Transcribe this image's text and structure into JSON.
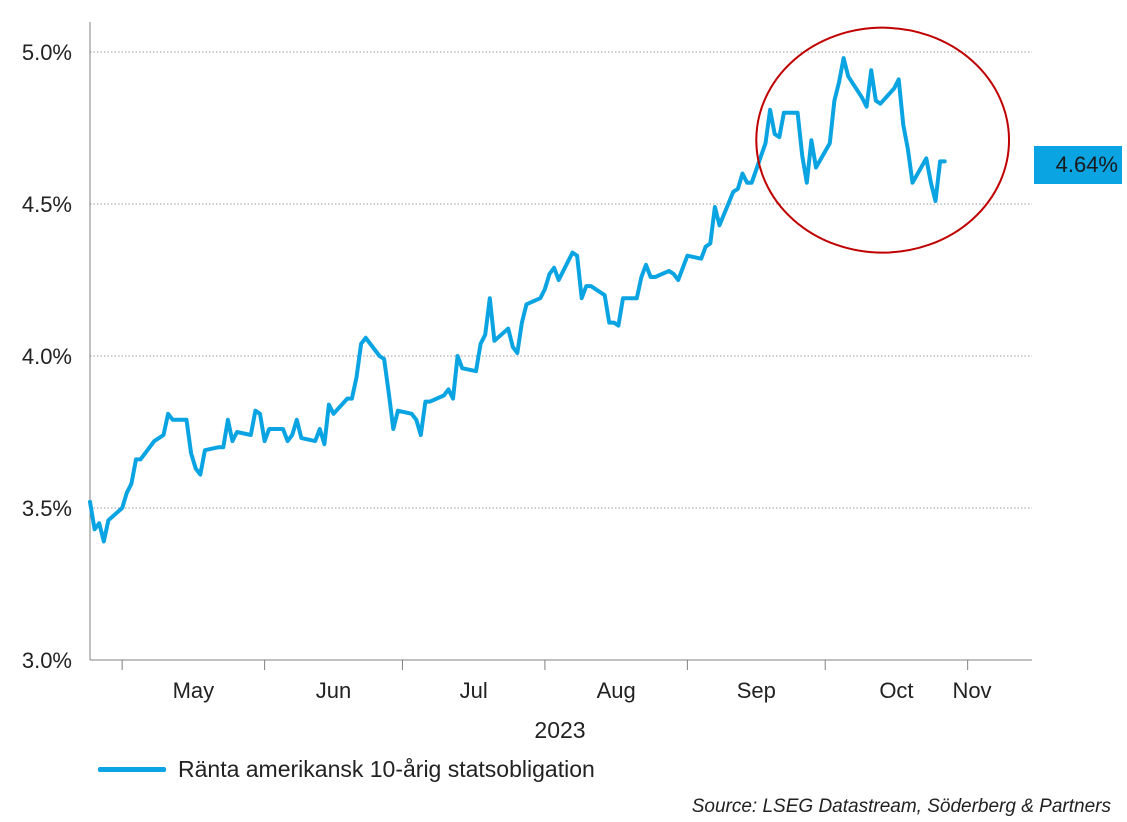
{
  "chart_data": {
    "type": "line",
    "title": "",
    "xlabel": "2023",
    "ylabel": "",
    "y_ticks": [
      "3.0%",
      "3.5%",
      "4.0%",
      "4.5%",
      "5.0%"
    ],
    "ylim": [
      3.0,
      5.0
    ],
    "x_ticks": [
      "May",
      "Jun",
      "Jul",
      "Aug",
      "Sep",
      "Oct",
      "Nov"
    ],
    "xlim": [
      "2023-04-24",
      "2023-11-15"
    ],
    "grid": true,
    "legend_position": "bottom-left",
    "series": [
      {
        "name": "Ränta amerikansk 10-årig statsobligation",
        "color": "#0ba4e2",
        "points": [
          [
            "2023-04-24",
            3.52
          ],
          [
            "2023-04-25",
            3.43
          ],
          [
            "2023-04-26",
            3.45
          ],
          [
            "2023-04-27",
            3.39
          ],
          [
            "2023-04-28",
            3.46
          ],
          [
            "2023-05-01",
            3.5
          ],
          [
            "2023-05-02",
            3.55
          ],
          [
            "2023-05-03",
            3.58
          ],
          [
            "2023-05-04",
            3.66
          ],
          [
            "2023-05-05",
            3.66
          ],
          [
            "2023-05-08",
            3.72
          ],
          [
            "2023-05-09",
            3.73
          ],
          [
            "2023-05-10",
            3.74
          ],
          [
            "2023-05-11",
            3.81
          ],
          [
            "2023-05-12",
            3.79
          ],
          [
            "2023-05-15",
            3.79
          ],
          [
            "2023-05-16",
            3.68
          ],
          [
            "2023-05-17",
            3.63
          ],
          [
            "2023-05-18",
            3.61
          ],
          [
            "2023-05-19",
            3.69
          ],
          [
            "2023-05-22",
            3.7
          ],
          [
            "2023-05-23",
            3.7
          ],
          [
            "2023-05-24",
            3.79
          ],
          [
            "2023-05-25",
            3.72
          ],
          [
            "2023-05-26",
            3.75
          ],
          [
            "2023-05-29",
            3.74
          ],
          [
            "2023-05-30",
            3.82
          ],
          [
            "2023-05-31",
            3.81
          ],
          [
            "2023-06-01",
            3.72
          ],
          [
            "2023-06-02",
            3.76
          ],
          [
            "2023-06-05",
            3.76
          ],
          [
            "2023-06-06",
            3.72
          ],
          [
            "2023-06-07",
            3.74
          ],
          [
            "2023-06-08",
            3.79
          ],
          [
            "2023-06-09",
            3.73
          ],
          [
            "2023-06-12",
            3.72
          ],
          [
            "2023-06-13",
            3.76
          ],
          [
            "2023-06-14",
            3.71
          ],
          [
            "2023-06-15",
            3.84
          ],
          [
            "2023-06-16",
            3.81
          ],
          [
            "2023-06-19",
            3.86
          ],
          [
            "2023-06-20",
            3.86
          ],
          [
            "2023-06-21",
            3.93
          ],
          [
            "2023-06-22",
            4.04
          ],
          [
            "2023-06-23",
            4.06
          ],
          [
            "2023-06-26",
            4.0
          ],
          [
            "2023-06-27",
            3.99
          ],
          [
            "2023-06-28",
            3.88
          ],
          [
            "2023-06-29",
            3.76
          ],
          [
            "2023-06-30",
            3.82
          ],
          [
            "2023-07-03",
            3.81
          ],
          [
            "2023-07-04",
            3.79
          ],
          [
            "2023-07-05",
            3.74
          ],
          [
            "2023-07-06",
            3.85
          ],
          [
            "2023-07-07",
            3.85
          ],
          [
            "2023-07-10",
            3.87
          ],
          [
            "2023-07-11",
            3.89
          ],
          [
            "2023-07-12",
            3.86
          ],
          [
            "2023-07-13",
            4.0
          ],
          [
            "2023-07-14",
            3.96
          ],
          [
            "2023-07-17",
            3.95
          ],
          [
            "2023-07-18",
            4.04
          ],
          [
            "2023-07-19",
            4.07
          ],
          [
            "2023-07-20",
            4.19
          ],
          [
            "2023-07-21",
            4.05
          ],
          [
            "2023-07-24",
            4.09
          ],
          [
            "2023-07-25",
            4.03
          ],
          [
            "2023-07-26",
            4.01
          ],
          [
            "2023-07-27",
            4.11
          ],
          [
            "2023-07-28",
            4.17
          ],
          [
            "2023-07-31",
            4.19
          ],
          [
            "2023-08-01",
            4.22
          ],
          [
            "2023-08-02",
            4.27
          ],
          [
            "2023-08-03",
            4.29
          ],
          [
            "2023-08-04",
            4.25
          ],
          [
            "2023-08-07",
            4.34
          ],
          [
            "2023-08-08",
            4.33
          ],
          [
            "2023-08-09",
            4.19
          ],
          [
            "2023-08-10",
            4.23
          ],
          [
            "2023-08-11",
            4.23
          ],
          [
            "2023-08-14",
            4.2
          ],
          [
            "2023-08-15",
            4.11
          ],
          [
            "2023-08-16",
            4.11
          ],
          [
            "2023-08-17",
            4.1
          ],
          [
            "2023-08-18",
            4.19
          ],
          [
            "2023-08-21",
            4.19
          ],
          [
            "2023-08-22",
            4.26
          ],
          [
            "2023-08-23",
            4.3
          ],
          [
            "2023-08-24",
            4.26
          ],
          [
            "2023-08-25",
            4.26
          ],
          [
            "2023-08-28",
            4.28
          ],
          [
            "2023-08-29",
            4.27
          ],
          [
            "2023-08-30",
            4.25
          ],
          [
            "2023-08-31",
            4.29
          ],
          [
            "2023-09-01",
            4.33
          ],
          [
            "2023-09-04",
            4.32
          ],
          [
            "2023-09-05",
            4.36
          ],
          [
            "2023-09-06",
            4.37
          ],
          [
            "2023-09-07",
            4.49
          ],
          [
            "2023-09-08",
            4.43
          ],
          [
            "2023-09-11",
            4.54
          ],
          [
            "2023-09-12",
            4.55
          ],
          [
            "2023-09-13",
            4.6
          ],
          [
            "2023-09-14",
            4.57
          ],
          [
            "2023-09-15",
            4.57
          ],
          [
            "2023-09-18",
            4.7
          ],
          [
            "2023-09-19",
            4.81
          ],
          [
            "2023-09-20",
            4.73
          ],
          [
            "2023-09-21",
            4.72
          ],
          [
            "2023-09-22",
            4.8
          ],
          [
            "2023-09-25",
            4.8
          ],
          [
            "2023-09-26",
            4.66
          ],
          [
            "2023-09-27",
            4.57
          ],
          [
            "2023-09-28",
            4.71
          ],
          [
            "2023-09-29",
            4.62
          ],
          [
            "2023-10-02",
            4.7
          ],
          [
            "2023-10-03",
            4.84
          ],
          [
            "2023-10-04",
            4.9
          ],
          [
            "2023-10-05",
            4.98
          ],
          [
            "2023-10-06",
            4.92
          ],
          [
            "2023-10-09",
            4.85
          ],
          [
            "2023-10-10",
            4.82
          ],
          [
            "2023-10-11",
            4.94
          ],
          [
            "2023-10-12",
            4.84
          ],
          [
            "2023-10-13",
            4.83
          ],
          [
            "2023-10-16",
            4.88
          ],
          [
            "2023-10-17",
            4.91
          ],
          [
            "2023-10-18",
            4.76
          ],
          [
            "2023-10-19",
            4.68
          ],
          [
            "2023-10-20",
            4.57
          ],
          [
            "2023-10-23",
            4.65
          ],
          [
            "2023-10-24",
            4.57
          ],
          [
            "2023-10-25",
            4.51
          ],
          [
            "2023-10-26",
            4.64
          ],
          [
            "2023-10-27",
            4.64
          ]
        ]
      }
    ],
    "last_value_label": "4.64%",
    "highlight": {
      "shape": "ellipse",
      "color": "#c00000"
    }
  },
  "source_note": "Source: LSEG Datastream, Söderberg & Partners"
}
